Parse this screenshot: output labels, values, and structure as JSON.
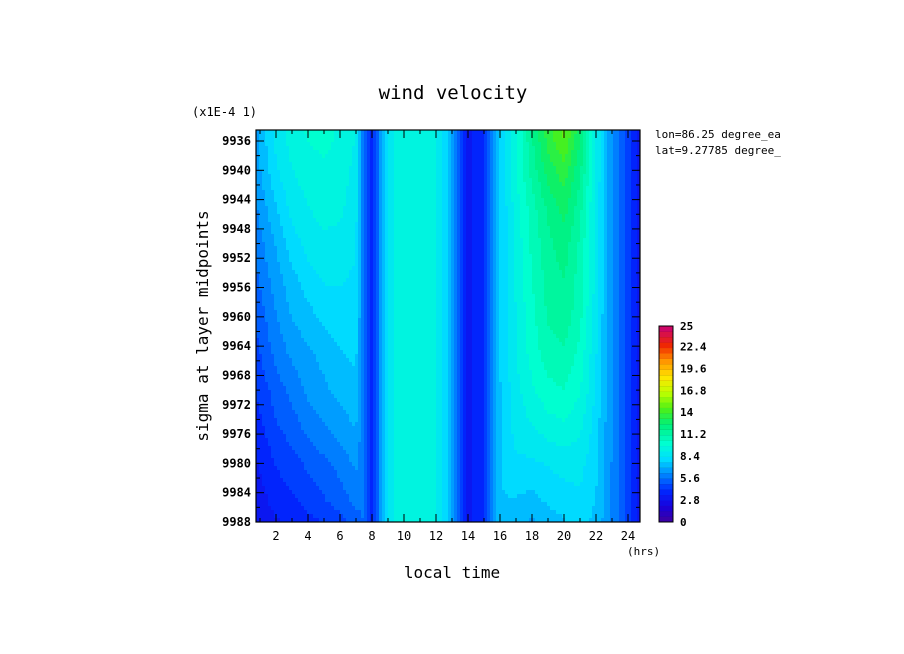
{
  "chart_data": {
    "type": "heatmap",
    "title": "wind velocity",
    "scale_note": "(x1E-4 1)",
    "xlabel": "local time",
    "xunit": "(hrs)",
    "ylabel": "sigma at layer midpoints",
    "xlim": [
      0.75,
      24.75
    ],
    "ylim": [
      9988,
      9934.5
    ],
    "x_ticks": [
      "2",
      "4",
      "6",
      "8",
      "10",
      "12",
      "14",
      "16",
      "18",
      "20",
      "22",
      "24"
    ],
    "y_ticks": [
      "9936",
      "9940",
      "9944",
      "9948",
      "9952",
      "9956",
      "9960",
      "9964",
      "9968",
      "9972",
      "9976",
      "9980",
      "9984",
      "9988"
    ],
    "annotations": [
      "lon=86.25 degree_ea",
      "lat=9.27785 degree_"
    ],
    "colorbar": {
      "min": 0,
      "max": 25,
      "tick_labels": [
        "25",
        "22.4",
        "19.6",
        "16.8",
        "14",
        "11.2",
        "8.4",
        "5.6",
        "2.8",
        "0"
      ]
    },
    "x": [
      0.75,
      2,
      3,
      4,
      5,
      6,
      7,
      7.5,
      8,
      9,
      10,
      12,
      13,
      14,
      15,
      16,
      17,
      18,
      19,
      20,
      21,
      22,
      23,
      24,
      24.75
    ],
    "y": [
      9935,
      9940,
      9945,
      9950,
      9955,
      9960,
      9965,
      9970,
      9975,
      9980,
      9985,
      9988
    ],
    "z": [
      [
        6.8,
        8.6,
        9.4,
        9.8,
        10.0,
        9.6,
        9.0,
        5.6,
        3.4,
        8.8,
        9.6,
        9.2,
        7.0,
        3.2,
        4.2,
        7.6,
        9.6,
        11.8,
        13.6,
        14.8,
        12.6,
        9.0,
        6.2,
        4.6,
        3.0
      ],
      [
        6.6,
        8.2,
        9.0,
        9.4,
        9.6,
        9.4,
        8.8,
        5.6,
        3.4,
        8.8,
        9.6,
        9.2,
        7.0,
        3.2,
        4.2,
        7.6,
        9.6,
        11.4,
        12.8,
        13.6,
        12.0,
        9.0,
        6.2,
        4.6,
        3.0
      ],
      [
        6.2,
        7.6,
        8.6,
        9.0,
        9.4,
        9.2,
        8.6,
        5.6,
        3.4,
        8.8,
        9.6,
        9.2,
        7.0,
        3.2,
        4.2,
        7.6,
        9.4,
        10.8,
        12.0,
        12.8,
        11.4,
        8.8,
        6.2,
        4.6,
        3.0
      ],
      [
        5.8,
        7.0,
        8.0,
        8.6,
        8.8,
        8.8,
        8.4,
        5.6,
        3.4,
        8.8,
        9.6,
        9.2,
        7.0,
        3.2,
        4.2,
        7.6,
        9.2,
        10.6,
        11.6,
        12.2,
        11.0,
        8.8,
        6.2,
        4.6,
        3.0
      ],
      [
        5.4,
        6.6,
        7.4,
        8.0,
        8.4,
        8.4,
        8.2,
        5.6,
        3.4,
        8.8,
        9.6,
        9.2,
        7.0,
        3.2,
        4.2,
        7.6,
        9.2,
        10.4,
        11.4,
        11.8,
        10.8,
        8.8,
        6.2,
        4.6,
        3.0
      ],
      [
        5.0,
        6.2,
        7.0,
        7.4,
        7.8,
        8.0,
        8.0,
        5.6,
        3.4,
        8.8,
        9.6,
        9.2,
        7.0,
        3.2,
        4.2,
        7.6,
        9.0,
        10.2,
        11.2,
        11.6,
        10.6,
        8.6,
        6.2,
        4.6,
        3.0
      ],
      [
        4.6,
        5.8,
        6.4,
        6.8,
        7.2,
        7.6,
        7.8,
        5.6,
        3.4,
        8.8,
        9.6,
        9.2,
        7.0,
        3.2,
        4.2,
        7.6,
        9.0,
        10.0,
        10.8,
        11.0,
        10.2,
        8.4,
        6.2,
        4.6,
        3.0
      ],
      [
        4.2,
        5.2,
        5.8,
        6.4,
        6.8,
        7.2,
        7.4,
        5.6,
        3.4,
        8.8,
        9.6,
        9.2,
        7.0,
        3.2,
        4.2,
        7.6,
        8.8,
        9.6,
        10.2,
        10.4,
        9.8,
        8.2,
        6.2,
        4.6,
        3.0
      ],
      [
        3.8,
        4.8,
        5.2,
        5.8,
        6.2,
        6.6,
        7.0,
        5.6,
        3.4,
        8.8,
        9.6,
        9.2,
        7.0,
        3.2,
        4.2,
        7.6,
        8.6,
        9.0,
        9.4,
        9.6,
        9.2,
        8.0,
        6.2,
        4.6,
        3.0
      ],
      [
        3.4,
        4.2,
        4.6,
        5.0,
        5.4,
        5.8,
        6.4,
        5.6,
        3.4,
        8.8,
        9.6,
        9.2,
        7.0,
        3.2,
        4.2,
        7.6,
        8.2,
        8.2,
        8.4,
        8.6,
        8.6,
        7.8,
        6.2,
        4.6,
        3.0
      ],
      [
        3.0,
        3.8,
        4.0,
        4.4,
        4.8,
        5.2,
        5.8,
        5.6,
        3.4,
        8.8,
        9.6,
        9.2,
        7.0,
        3.2,
        4.2,
        7.6,
        7.6,
        7.4,
        7.8,
        8.0,
        8.2,
        7.6,
        6.2,
        4.6,
        3.0
      ],
      [
        2.8,
        3.4,
        3.6,
        4.0,
        4.2,
        4.6,
        5.2,
        5.6,
        3.4,
        8.8,
        9.6,
        9.2,
        7.0,
        3.2,
        4.2,
        7.6,
        7.4,
        6.8,
        7.2,
        7.6,
        8.0,
        7.4,
        6.2,
        4.6,
        3.0
      ]
    ]
  }
}
